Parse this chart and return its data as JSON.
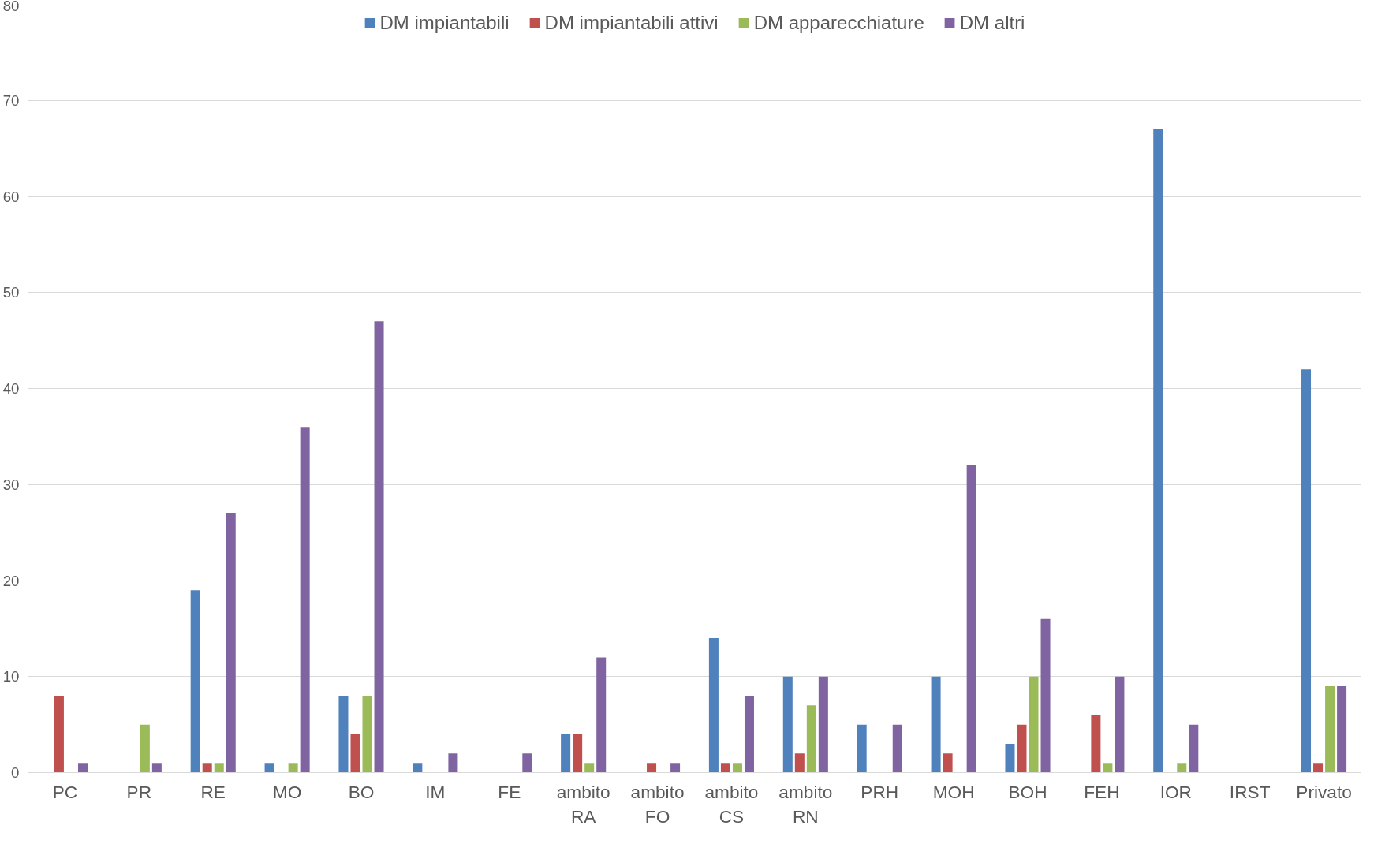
{
  "chart_data": {
    "type": "bar",
    "categories": [
      "PC",
      "PR",
      "RE",
      "MO",
      "BO",
      "IM",
      "FE",
      "ambito RA",
      "ambito FO",
      "ambito CS",
      "ambito RN",
      "PRH",
      "MOH",
      "BOH",
      "FEH",
      "IOR",
      "IRST",
      "Privato"
    ],
    "series": [
      {
        "name": "DM impiantabili",
        "color": "#4f81bd",
        "values": [
          0,
          0,
          19,
          1,
          8,
          1,
          0,
          4,
          0,
          14,
          10,
          5,
          10,
          3,
          0,
          67,
          0,
          42
        ]
      },
      {
        "name": "DM impiantabili attivi",
        "color": "#c0504d",
        "values": [
          8,
          0,
          1,
          0,
          4,
          0,
          0,
          4,
          1,
          1,
          2,
          0,
          2,
          5,
          6,
          0,
          0,
          1
        ]
      },
      {
        "name": "DM apparecchiature",
        "color": "#9bbb59",
        "values": [
          0,
          5,
          1,
          1,
          8,
          0,
          0,
          1,
          0,
          1,
          7,
          0,
          0,
          10,
          1,
          1,
          0,
          9
        ]
      },
      {
        "name": "DM altri",
        "color": "#8064a2",
        "values": [
          1,
          1,
          27,
          36,
          47,
          2,
          2,
          12,
          1,
          8,
          10,
          5,
          32,
          16,
          10,
          5,
          0,
          9
        ]
      }
    ],
    "ylim": [
      0,
      80
    ],
    "yticks": [
      0,
      10,
      20,
      30,
      40,
      50,
      60,
      70,
      80
    ],
    "grid": "y",
    "legend": "top"
  }
}
